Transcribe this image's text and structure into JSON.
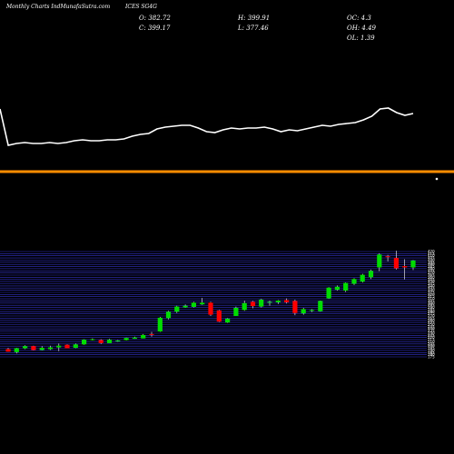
{
  "header": {
    "brand": "Monthly Charts IndMunafaSutra.com",
    "ticker": "ICES SG4G",
    "open": "O: 382.72",
    "close": "C: 399.17",
    "high": "H: 399.91",
    "low": "L: 377.46",
    "oc": "OC: 4.3",
    "oh": "OH: 4.49",
    "ol": "OL: 1.39"
  },
  "colors": {
    "up": "#00dd00",
    "down": "#ff0000",
    "line": "#ffffff",
    "divider": "#ff8c00",
    "grid": "#3333cc"
  },
  "chart_data": [
    {
      "type": "line",
      "description_series": "upper panel line",
      "x": [
        0,
        1,
        2,
        3,
        4,
        5,
        6,
        7,
        8,
        9,
        10,
        11,
        12,
        13,
        14,
        15,
        16,
        17,
        18,
        19,
        20,
        21,
        22,
        23,
        24,
        25,
        26,
        27,
        28,
        29,
        30,
        31,
        32,
        33,
        34,
        35,
        36,
        37,
        38,
        39,
        40,
        41,
        42,
        43,
        44,
        45,
        46,
        47,
        48,
        49,
        50
      ],
      "values": [
        120,
        160,
        158,
        157,
        158,
        158,
        157,
        158,
        157,
        155,
        154,
        155,
        155,
        154,
        154,
        153,
        150,
        148,
        147,
        142,
        140,
        139,
        138,
        138,
        141,
        145,
        146,
        143,
        141,
        142,
        141,
        141,
        140,
        142,
        145,
        143,
        144,
        142,
        140,
        138,
        139,
        137,
        136,
        135,
        132,
        128,
        120,
        119,
        124,
        127,
        125
      ]
    },
    {
      "type": "candlestick",
      "yticks": [
        175,
        180,
        185,
        190,
        195,
        200,
        205,
        210,
        215,
        220,
        225,
        230,
        235,
        240,
        245,
        250,
        255,
        260,
        265,
        270,
        275,
        280,
        285,
        290,
        295,
        300,
        305,
        310,
        315,
        320,
        325,
        330,
        335,
        340,
        345,
        350,
        355,
        360,
        365,
        370,
        375,
        380,
        385,
        390,
        395,
        400,
        405,
        410,
        415,
        420
      ],
      "ylim": [
        175,
        420
      ],
      "candles": [
        {
          "o": 193,
          "h": 196,
          "l": 187,
          "c": 187
        },
        {
          "o": 186,
          "h": 196,
          "l": 183,
          "c": 195
        },
        {
          "o": 195,
          "h": 202,
          "l": 193,
          "c": 200
        },
        {
          "o": 200,
          "h": 201,
          "l": 190,
          "c": 191
        },
        {
          "o": 191,
          "h": 200,
          "l": 190,
          "c": 196
        },
        {
          "o": 193,
          "h": 201,
          "l": 191,
          "c": 197
        },
        {
          "o": 197,
          "h": 206,
          "l": 188,
          "c": 201
        },
        {
          "o": 203,
          "h": 204,
          "l": 195,
          "c": 195
        },
        {
          "o": 196,
          "h": 206,
          "l": 195,
          "c": 204
        },
        {
          "o": 204,
          "h": 216,
          "l": 203,
          "c": 215
        },
        {
          "o": 214,
          "h": 218,
          "l": 213,
          "c": 216
        },
        {
          "o": 214,
          "h": 216,
          "l": 205,
          "c": 207
        },
        {
          "o": 207,
          "h": 217,
          "l": 207,
          "c": 215
        },
        {
          "o": 211,
          "h": 214,
          "l": 210,
          "c": 213
        },
        {
          "o": 214,
          "h": 220,
          "l": 213,
          "c": 219
        },
        {
          "o": 217,
          "h": 222,
          "l": 217,
          "c": 220
        },
        {
          "o": 218,
          "h": 228,
          "l": 218,
          "c": 226
        },
        {
          "o": 228,
          "h": 233,
          "l": 222,
          "c": 226
        },
        {
          "o": 234,
          "h": 268,
          "l": 233,
          "c": 266
        },
        {
          "o": 265,
          "h": 282,
          "l": 262,
          "c": 280
        },
        {
          "o": 280,
          "h": 294,
          "l": 277,
          "c": 292
        },
        {
          "o": 290,
          "h": 297,
          "l": 289,
          "c": 294
        },
        {
          "o": 291,
          "h": 303,
          "l": 290,
          "c": 301
        },
        {
          "o": 297,
          "h": 312,
          "l": 296,
          "c": 301
        },
        {
          "o": 301,
          "h": 303,
          "l": 270,
          "c": 273
        },
        {
          "o": 283,
          "h": 284,
          "l": 256,
          "c": 257
        },
        {
          "o": 255,
          "h": 265,
          "l": 254,
          "c": 264
        },
        {
          "o": 270,
          "h": 292,
          "l": 270,
          "c": 289
        },
        {
          "o": 284,
          "h": 306,
          "l": 282,
          "c": 300
        },
        {
          "o": 303,
          "h": 305,
          "l": 288,
          "c": 293
        },
        {
          "o": 292,
          "h": 310,
          "l": 290,
          "c": 308
        },
        {
          "o": 301,
          "h": 306,
          "l": 294,
          "c": 303
        },
        {
          "o": 302,
          "h": 307,
          "l": 298,
          "c": 306
        },
        {
          "o": 307,
          "h": 311,
          "l": 299,
          "c": 302
        },
        {
          "o": 305,
          "h": 308,
          "l": 272,
          "c": 277
        },
        {
          "o": 276,
          "h": 289,
          "l": 273,
          "c": 286
        },
        {
          "o": 284,
          "h": 286,
          "l": 279,
          "c": 284
        },
        {
          "o": 281,
          "h": 306,
          "l": 280,
          "c": 305
        },
        {
          "o": 311,
          "h": 337,
          "l": 310,
          "c": 336
        },
        {
          "o": 331,
          "h": 341,
          "l": 329,
          "c": 338
        },
        {
          "o": 329,
          "h": 348,
          "l": 326,
          "c": 347
        },
        {
          "o": 345,
          "h": 358,
          "l": 342,
          "c": 356
        },
        {
          "o": 350,
          "h": 368,
          "l": 348,
          "c": 366
        },
        {
          "o": 360,
          "h": 378,
          "l": 356,
          "c": 375
        },
        {
          "o": 383,
          "h": 416,
          "l": 374,
          "c": 413
        },
        {
          "o": 409,
          "h": 412,
          "l": 397,
          "c": 407
        },
        {
          "o": 405,
          "h": 422,
          "l": 378,
          "c": 381
        },
        {
          "o": 386,
          "h": 402,
          "l": 355,
          "c": 383
        },
        {
          "o": 383,
          "h": 400,
          "l": 377,
          "c": 399
        }
      ]
    }
  ]
}
